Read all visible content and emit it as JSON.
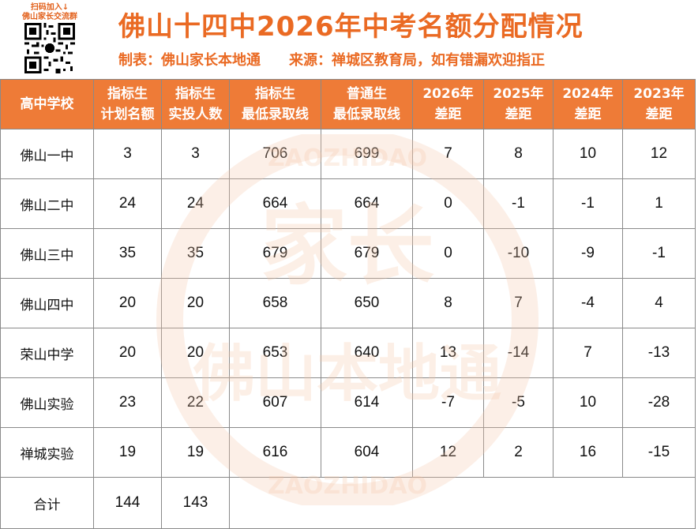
{
  "header": {
    "qr_caption_1": "扫码加入↓",
    "qr_caption_2": "佛山家长交流群",
    "title": "佛山十四中2026年中考名额分配情况",
    "maker": "制表：佛山家长本地通",
    "source": "来源：禅城区教育局，如有错漏欢迎指正"
  },
  "table": {
    "columns": [
      [
        "高中学校"
      ],
      [
        "指标生",
        "计划名额"
      ],
      [
        "指标生",
        "实投人数"
      ],
      [
        "指标生",
        "最低录取线"
      ],
      [
        "普通生",
        "最低录取线"
      ],
      [
        "2026年",
        "差距"
      ],
      [
        "2025年",
        "差距"
      ],
      [
        "2024年",
        "差距"
      ],
      [
        "2023年",
        "差距"
      ]
    ],
    "rows": [
      [
        "佛山一中",
        "3",
        "3",
        "706",
        "699",
        "7",
        "8",
        "10",
        "12"
      ],
      [
        "佛山二中",
        "24",
        "24",
        "664",
        "664",
        "0",
        "-1",
        "-1",
        "1"
      ],
      [
        "佛山三中",
        "35",
        "35",
        "679",
        "679",
        "0",
        "-10",
        "-9",
        "-1"
      ],
      [
        "佛山四中",
        "20",
        "20",
        "658",
        "650",
        "8",
        "7",
        "-4",
        "4"
      ],
      [
        "荣山中学",
        "20",
        "20",
        "653",
        "640",
        "13",
        "-14",
        "7",
        "-13"
      ],
      [
        "佛山实验",
        "23",
        "22",
        "607",
        "614",
        "-7",
        "-5",
        "10",
        "-28"
      ],
      [
        "禅城实验",
        "19",
        "19",
        "616",
        "604",
        "12",
        "2",
        "16",
        "-15"
      ]
    ],
    "total": [
      "合计",
      "144",
      "143"
    ]
  },
  "watermark": {
    "text_main": "家长",
    "text_sub": "佛山本地通",
    "text_ring": "ZAOZHIDAO",
    "color": "#f5c7a8"
  },
  "colors": {
    "accent": "#ea6a23",
    "header_bg": "#ee7b37"
  }
}
